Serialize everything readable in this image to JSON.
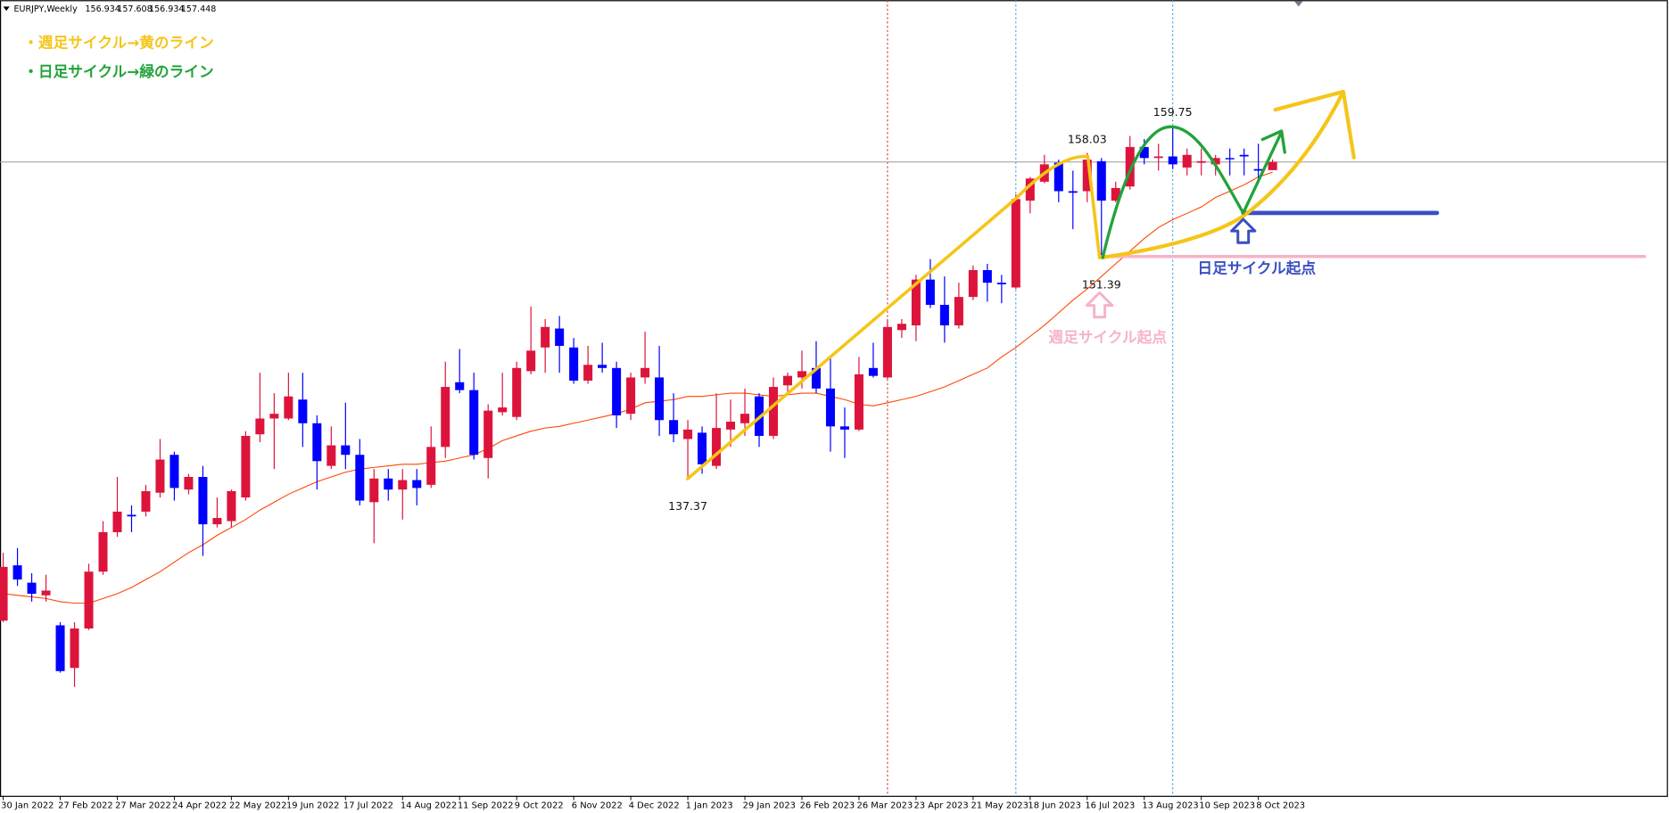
{
  "chart_data": {
    "type": "candlestick",
    "title": "EURJPY,Weekly",
    "annotations": [
      "・週足サイクル→黄のライン",
      "・日足サイクル→緑のライン",
      "日足サイクル起点",
      "週足サイクル起点"
    ],
    "bull_color": "#dc143c",
    "bear_color": "#0000ff",
    "ylim": [
      117.3,
      167.7
    ],
    "categories": [
      "30 Jan 2022",
      null,
      null,
      null,
      "27 Feb 2022",
      null,
      null,
      null,
      "27 Mar 2022",
      null,
      null,
      null,
      "24 Apr 2022",
      null,
      null,
      null,
      "22 May 2022",
      null,
      null,
      null,
      "19 Jun 2022",
      null,
      null,
      null,
      "17 Jul 2022",
      null,
      null,
      null,
      "14 Aug 2022",
      null,
      null,
      null,
      "11 Sep 2022",
      null,
      null,
      null,
      "9 Oct 2022",
      null,
      null,
      null,
      "6 Nov 2022",
      null,
      null,
      null,
      "4 Dec 2022",
      null,
      null,
      null,
      "1 Jan 2023",
      null,
      null,
      null,
      "29 Jan 2023",
      null,
      null,
      null,
      "26 Feb 2023",
      null,
      null,
      null,
      "26 Mar 2023",
      null,
      null,
      null,
      "23 Apr 2023",
      null,
      null,
      null,
      "21 May 2023",
      null,
      null,
      null,
      "18 Jun 2023",
      null,
      null,
      null,
      "16 Jul 2023",
      null,
      null,
      null,
      "13 Aug 2023",
      null,
      null,
      null,
      "10 Sep 2023",
      null,
      null,
      null,
      "8 Oct 2023",
      null
    ],
    "open": [
      128.4,
      131.9,
      130.8,
      130.0,
      128.1,
      125.4,
      127.9,
      131.5,
      134.0,
      135.1,
      135.3,
      136.5,
      138.9,
      136.7,
      137.5,
      134.5,
      134.7,
      136.2,
      140.2,
      141.2,
      141.2,
      142.4,
      140.9,
      138.2,
      139.5,
      138.9,
      135.9,
      137.4,
      136.7,
      137.3,
      137.0,
      139.4,
      143.5,
      143.0,
      138.7,
      141.6,
      141.3,
      144.2,
      145.7,
      146.9,
      145.7,
      143.6,
      144.6,
      144.4,
      141.5,
      143.8,
      143.8,
      141.1,
      139.9,
      140.3,
      138.2,
      140.5,
      140.9,
      142.6,
      140.1,
      143.3,
      143.8,
      144.4,
      143.1,
      140.7,
      140.5,
      144.4,
      143.8,
      146.8,
      147.1,
      150.0,
      148.4,
      147.1,
      148.9,
      150.6,
      149.8,
      149.5,
      155.0,
      156.2,
      157.4,
      155.6,
      155.6,
      157.5,
      155.0,
      155.9,
      158.4,
      157.7,
      157.8,
      157.1,
      157.4,
      157.3,
      157.7,
      157.9,
      157.0,
      156.934
    ],
    "high": [
      132.7,
      133.0,
      131.4,
      131.3,
      128.3,
      128.3,
      132.0,
      134.7,
      137.5,
      135.7,
      137.0,
      139.9,
      139.1,
      137.7,
      138.2,
      136.2,
      136.7,
      140.4,
      144.1,
      142.8,
      144.1,
      144.1,
      141.4,
      140.7,
      142.2,
      139.9,
      138.0,
      138.0,
      138.0,
      138.0,
      140.7,
      144.8,
      145.6,
      144.1,
      142.1,
      144.1,
      144.8,
      148.3,
      147.5,
      147.7,
      146.3,
      145.8,
      146.0,
      144.8,
      144.1,
      146.7,
      145.8,
      142.8,
      141.1,
      140.7,
      142.8,
      142.4,
      143.1,
      142.8,
      143.8,
      144.1,
      145.5,
      146.1,
      145.0,
      141.9,
      145.1,
      146.0,
      147.5,
      147.5,
      150.3,
      151.3,
      150.2,
      149.8,
      150.9,
      151.0,
      150.3,
      155.4,
      156.5,
      157.9,
      157.6,
      156.9,
      158.03,
      157.7,
      156.2,
      159.1,
      158.9,
      158.6,
      159.75,
      158.3,
      158.3,
      157.9,
      158.3,
      158.3,
      158.6,
      157.608
    ],
    "low": [
      128.3,
      130.6,
      129.6,
      129.6,
      125.1,
      124.2,
      127.8,
      131.3,
      133.7,
      134.0,
      135.0,
      136.2,
      136.0,
      136.4,
      132.5,
      134.3,
      134.3,
      136.0,
      139.7,
      138.0,
      141.1,
      139.4,
      136.7,
      138.0,
      138.0,
      135.7,
      133.3,
      136.0,
      134.8,
      135.7,
      136.8,
      138.7,
      142.8,
      138.6,
      137.4,
      141.4,
      141.1,
      144.0,
      144.1,
      144.1,
      143.4,
      143.4,
      144.1,
      140.6,
      141.1,
      143.4,
      140.1,
      139.7,
      137.37,
      137.7,
      138.0,
      139.4,
      140.1,
      139.4,
      139.9,
      142.8,
      143.1,
      142.8,
      139.1,
      138.7,
      140.4,
      143.8,
      143.7,
      146.3,
      146.1,
      148.2,
      146.0,
      146.9,
      148.7,
      148.6,
      148.5,
      149.4,
      154.2,
      156.1,
      154.9,
      153.2,
      154.9,
      151.39,
      154.9,
      155.7,
      157.3,
      156.9,
      157.0,
      156.6,
      156.6,
      156.6,
      156.6,
      156.6,
      156.2,
      156.934
    ],
    "close": [
      131.8,
      131.0,
      130.1,
      130.3,
      125.2,
      127.9,
      131.5,
      134.0,
      135.3,
      135.0,
      136.6,
      138.6,
      136.8,
      137.5,
      134.5,
      134.9,
      136.6,
      140.1,
      141.2,
      141.5,
      142.6,
      140.9,
      138.5,
      139.5,
      138.9,
      136.0,
      137.4,
      136.7,
      137.3,
      136.8,
      139.4,
      143.2,
      143.0,
      138.9,
      141.7,
      141.9,
      144.4,
      145.5,
      147.0,
      145.8,
      143.6,
      144.6,
      144.4,
      141.4,
      143.8,
      144.4,
      141.1,
      140.2,
      140.5,
      138.3,
      140.6,
      141.0,
      141.5,
      140.1,
      143.2,
      143.9,
      144.2,
      143.1,
      140.7,
      140.5,
      144.0,
      143.9,
      147.0,
      147.2,
      150.0,
      148.4,
      147.1,
      148.9,
      150.6,
      149.8,
      149.7,
      155.1,
      156.4,
      157.3,
      155.6,
      155.5,
      157.6,
      155.0,
      155.8,
      158.4,
      157.7,
      157.8,
      157.3,
      157.9,
      157.5,
      157.7,
      157.7,
      157.8,
      156.9,
      157.448
    ],
    "ma": {
      "color": "#ff4500",
      "values": [
        130.1,
        130.0,
        129.9,
        129.8,
        129.6,
        129.5,
        129.5,
        129.8,
        130.1,
        130.5,
        131.0,
        131.5,
        132.1,
        132.7,
        133.2,
        133.8,
        134.3,
        134.8,
        135.4,
        135.9,
        136.4,
        136.8,
        137.2,
        137.5,
        137.8,
        138.0,
        138.1,
        138.2,
        138.3,
        138.3,
        138.4,
        138.5,
        138.7,
        138.9,
        139.3,
        139.8,
        140.1,
        140.4,
        140.6,
        140.7,
        140.9,
        141.1,
        141.3,
        141.5,
        141.8,
        142.2,
        142.3,
        142.4,
        142.6,
        142.6,
        142.7,
        142.8,
        142.8,
        142.7,
        142.6,
        142.7,
        142.8,
        142.8,
        142.6,
        142.4,
        142.1,
        142.0,
        142.2,
        142.4,
        142.6,
        142.9,
        143.2,
        143.6,
        144.0,
        144.4,
        145.1,
        145.7,
        146.4,
        147.1,
        147.9,
        148.7,
        149.4,
        150.2,
        151.0,
        151.8,
        152.6,
        153.3,
        153.8,
        154.2,
        154.6,
        155.2,
        155.6,
        156.0,
        156.5,
        156.8
      ]
    }
  }
}
